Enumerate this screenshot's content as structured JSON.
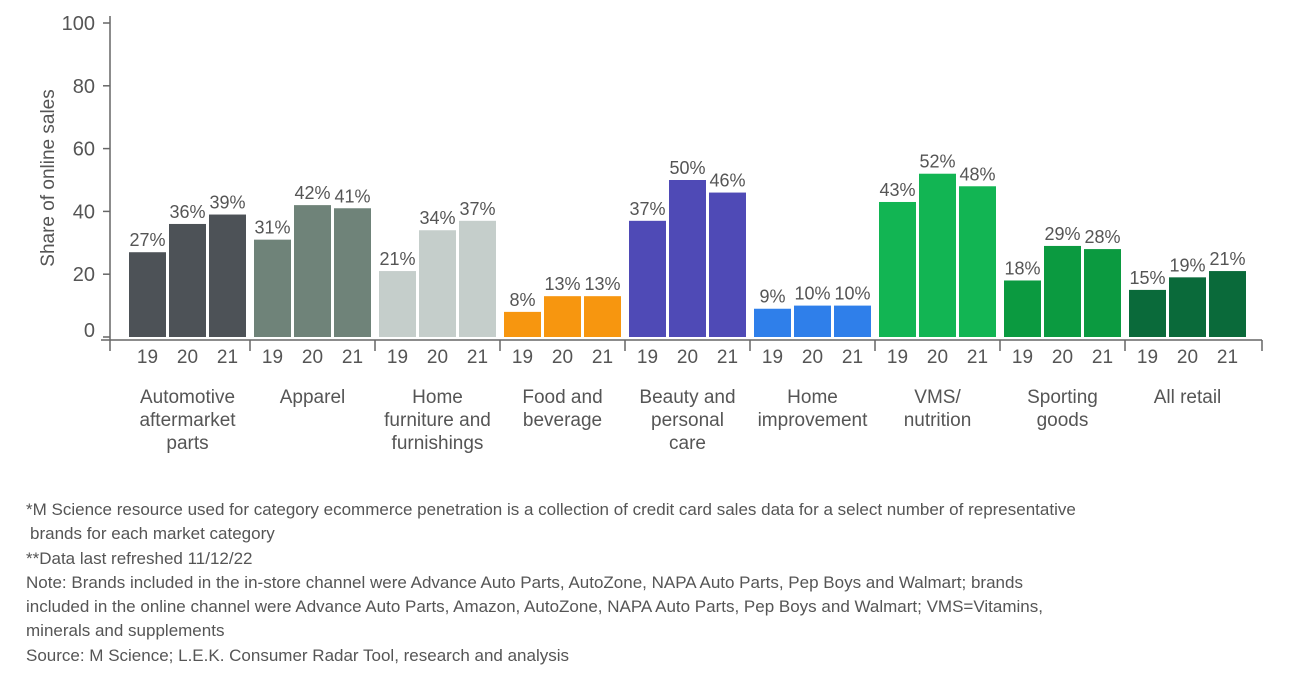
{
  "chart_data": {
    "type": "bar",
    "ylabel": "Share of online sales",
    "ylim": [
      0,
      100
    ],
    "yticks": [
      0,
      20,
      40,
      60,
      80,
      100
    ],
    "grid": false,
    "legend": "none",
    "subcategories": [
      "19",
      "20",
      "21"
    ],
    "groups": [
      {
        "label": [
          "Automotive",
          "aftermarket",
          "parts"
        ],
        "values": [
          27,
          36,
          39
        ],
        "labels": [
          "27%",
          "36%",
          "39%"
        ],
        "color": "#4d5257"
      },
      {
        "label": [
          "Apparel"
        ],
        "values": [
          31,
          42,
          41
        ],
        "labels": [
          "31%",
          "42%",
          "41%"
        ],
        "color": "#6f8379"
      },
      {
        "label": [
          "Home",
          "furniture and",
          "furnishings"
        ],
        "values": [
          21,
          34,
          37
        ],
        "labels": [
          "21%",
          "34%",
          "37%"
        ],
        "color": "#c5cecb"
      },
      {
        "label": [
          "Food and",
          "beverage"
        ],
        "values": [
          8,
          13,
          13
        ],
        "labels": [
          "8%",
          "13%",
          "13%"
        ],
        "color": "#f7960f"
      },
      {
        "label": [
          "Beauty and",
          "personal",
          "care"
        ],
        "values": [
          37,
          50,
          46
        ],
        "labels": [
          "37%",
          "50%",
          "46%"
        ],
        "color": "#4f4ab6"
      },
      {
        "label": [
          "Home",
          "improvement"
        ],
        "values": [
          9,
          10,
          10
        ],
        "labels": [
          "9%",
          "10%",
          "10%"
        ],
        "color": "#2f7fea"
      },
      {
        "label": [
          "VMS/",
          "nutrition"
        ],
        "values": [
          43,
          52,
          48
        ],
        "labels": [
          "43%",
          "52%",
          "48%"
        ],
        "color": "#12b553"
      },
      {
        "label": [
          "Sporting",
          "goods"
        ],
        "values": [
          18,
          29,
          28
        ],
        "labels": [
          "18%",
          "29%",
          "28%"
        ],
        "color": "#0b9a40"
      },
      {
        "label": [
          "All retail"
        ],
        "values": [
          15,
          19,
          21
        ],
        "labels": [
          "15%",
          "19%",
          "21%"
        ],
        "color": "#0a6a3a"
      }
    ]
  },
  "notes": [
    "*M Science resource used for category ecommerce penetration is a collection of credit card sales data for a select number of representative",
    " brands for each market category",
    "**Data last refreshed 11/12/22",
    "Note: Brands included in the in-store channel were Advance Auto Parts, AutoZone, NAPA Auto Parts, Pep Boys and Walmart; brands",
    "included in the online channel were Advance Auto Parts, Amazon, AutoZone, NAPA Auto Parts, Pep Boys and Walmart; VMS=Vitamins,",
    "minerals and supplements",
    "Source: M Science; L.E.K. Consumer Radar Tool, research and analysis"
  ]
}
